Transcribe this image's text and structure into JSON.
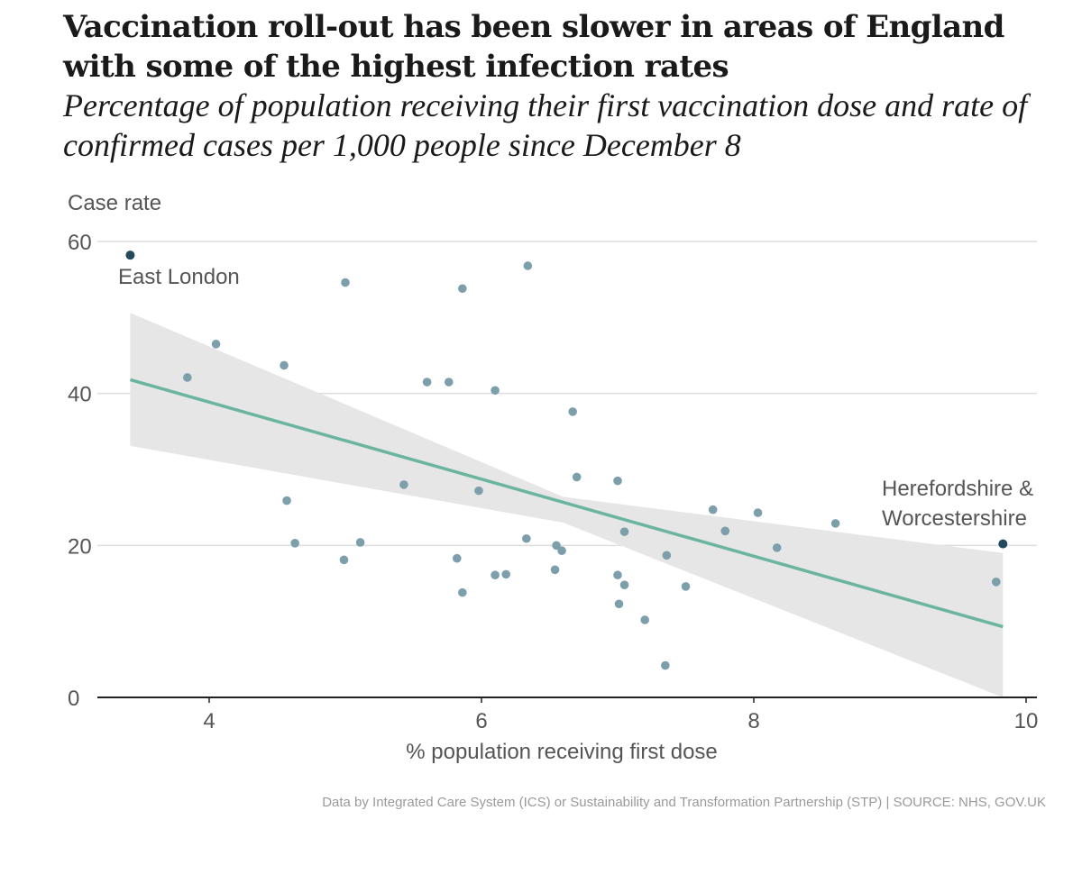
{
  "title": "Vaccination roll-out has been slower in areas of England with some of the highest infection rates",
  "subtitle": "Percentage of population receiving their first vaccination dose and rate of confirmed cases per 1,000 people since December 8",
  "footnote": "Data by Integrated Care System (ICS) or Sustainability and Transformation Partnership (STP) | SOURCE: NHS, GOV.UK",
  "colors": {
    "point": "#7d9fab",
    "highlight": "#24495c",
    "trend": "#6bb5a0",
    "band": "#e6e6e6",
    "grid": "#dddddd",
    "axis": "#222222"
  },
  "chart_data": {
    "type": "scatter",
    "xlabel": "% population receiving first dose",
    "ylabel": "Case rate",
    "xlim": [
      3.4,
      10.05
    ],
    "ylim": [
      0,
      60
    ],
    "x_ticks": [
      4,
      6,
      8,
      10
    ],
    "y_ticks": [
      0,
      20,
      40,
      60
    ],
    "grid": true,
    "points": [
      {
        "x": 3.84,
        "y": 42.1
      },
      {
        "x": 4.05,
        "y": 46.5
      },
      {
        "x": 4.55,
        "y": 43.7
      },
      {
        "x": 4.57,
        "y": 25.9
      },
      {
        "x": 4.63,
        "y": 20.3
      },
      {
        "x": 4.99,
        "y": 18.1
      },
      {
        "x": 5.0,
        "y": 54.6
      },
      {
        "x": 5.11,
        "y": 20.4
      },
      {
        "x": 5.43,
        "y": 28.0
      },
      {
        "x": 5.6,
        "y": 41.5
      },
      {
        "x": 5.76,
        "y": 41.5
      },
      {
        "x": 5.82,
        "y": 18.3
      },
      {
        "x": 5.86,
        "y": 13.8
      },
      {
        "x": 5.86,
        "y": 53.8
      },
      {
        "x": 5.98,
        "y": 27.2
      },
      {
        "x": 6.1,
        "y": 16.1
      },
      {
        "x": 6.1,
        "y": 40.4
      },
      {
        "x": 6.18,
        "y": 16.2
      },
      {
        "x": 6.33,
        "y": 20.9
      },
      {
        "x": 6.34,
        "y": 56.8
      },
      {
        "x": 6.54,
        "y": 16.8
      },
      {
        "x": 6.55,
        "y": 20.0
      },
      {
        "x": 6.59,
        "y": 19.3
      },
      {
        "x": 6.67,
        "y": 37.6
      },
      {
        "x": 6.7,
        "y": 29.0
      },
      {
        "x": 7.0,
        "y": 28.5
      },
      {
        "x": 7.0,
        "y": 16.1
      },
      {
        "x": 7.01,
        "y": 12.3
      },
      {
        "x": 7.05,
        "y": 21.8
      },
      {
        "x": 7.05,
        "y": 14.8
      },
      {
        "x": 7.2,
        "y": 10.2
      },
      {
        "x": 7.35,
        "y": 4.2
      },
      {
        "x": 7.36,
        "y": 18.7
      },
      {
        "x": 7.5,
        "y": 14.6
      },
      {
        "x": 7.7,
        "y": 24.7
      },
      {
        "x": 7.79,
        "y": 21.9
      },
      {
        "x": 8.03,
        "y": 24.3
      },
      {
        "x": 8.17,
        "y": 19.7
      },
      {
        "x": 8.6,
        "y": 22.9
      },
      {
        "x": 9.78,
        "y": 15.2
      }
    ],
    "highlighted": [
      {
        "label": "East London",
        "x": 3.42,
        "y": 58.2
      },
      {
        "label": "Herefordshire & Worcestershire",
        "x": 9.83,
        "y": 20.2
      }
    ],
    "trend": {
      "x0": 3.42,
      "y0": 41.8,
      "x1": 9.83,
      "y1": 9.3
    },
    "confidence_band": {
      "x": [
        3.42,
        6.6,
        9.83
      ],
      "upper": [
        50.6,
        26.4,
        19.0
      ],
      "lower": [
        33.1,
        23.0,
        -0.5
      ]
    }
  }
}
